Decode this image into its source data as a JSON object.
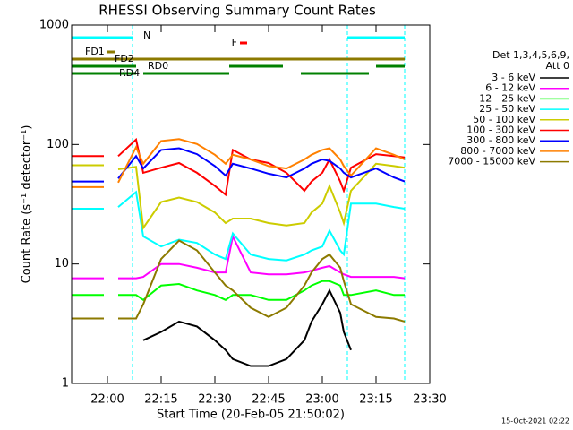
{
  "chart_data": {
    "type": "line",
    "title": "RHESSI Observing Summary Count Rates",
    "x_label": "Start Time (20-Feb-05 21:50:02)",
    "y_label": "Count Rate (s⁻¹ detector⁻¹)",
    "footer": "15-Oct-2021 02:22",
    "legend_header": [
      "Det 1,3,4,5,6,9,",
      "Att 0"
    ],
    "ylog": true,
    "xlim": [
      "21:50",
      "23:30"
    ],
    "xticks": [
      "22:00",
      "22:15",
      "22:30",
      "22:45",
      "23:00",
      "23:15",
      "23:30"
    ],
    "ylim": [
      1,
      1000
    ],
    "yticks": [
      1,
      10,
      100,
      1000
    ],
    "x": [
      "21:50",
      "21:55",
      "21:59",
      "22:00",
      "22:03",
      "22:08",
      "22:10",
      "22:15",
      "22:20",
      "22:25",
      "22:30",
      "22:33",
      "22:35",
      "22:40",
      "22:45",
      "22:50",
      "22:55",
      "22:57",
      "23:00",
      "23:02",
      "23:05",
      "23:06",
      "23:08",
      "23:15",
      "23:20",
      "23:23"
    ],
    "series": [
      {
        "name": "3 - 6 keV",
        "color": "#000000",
        "values": [
          null,
          null,
          null,
          null,
          null,
          null,
          2.3,
          2.7,
          3.3,
          3,
          2.3,
          1.9,
          1.6,
          1.4,
          1.4,
          1.6,
          2.3,
          3.3,
          4.6,
          6,
          3.9,
          2.7,
          1.9,
          null,
          null,
          null
        ]
      },
      {
        "name": "6 - 12 keV",
        "color": "#ff00ff",
        "values": [
          7.6,
          7.6,
          7.6,
          null,
          7.6,
          7.6,
          7.8,
          10,
          10,
          9.3,
          8.5,
          8.5,
          17,
          8.5,
          8.2,
          8.2,
          8.5,
          8.8,
          9.3,
          9.6,
          8.5,
          8.2,
          7.8,
          7.8,
          7.8,
          7.6
        ]
      },
      {
        "name": "12 - 25 keV",
        "color": "#00ff00",
        "values": [
          5.5,
          5.5,
          5.5,
          null,
          5.5,
          5.5,
          5,
          6.6,
          6.8,
          6,
          5.5,
          5,
          5.5,
          5.5,
          5,
          5,
          6,
          6.6,
          7.2,
          7.2,
          6.6,
          5.5,
          5.5,
          6,
          5.5,
          5.5
        ]
      },
      {
        "name": "25 - 50 keV",
        "color": "#00ffff",
        "values": [
          29,
          29,
          29,
          null,
          30,
          40,
          17,
          14,
          16,
          15,
          12,
          11,
          18,
          12,
          11,
          10.7,
          12,
          13,
          14,
          19,
          13,
          12,
          32,
          32,
          30,
          29
        ]
      },
      {
        "name": "50 - 100 keV",
        "color": "#cccc00",
        "values": [
          67,
          67,
          67,
          null,
          62,
          65,
          20,
          33,
          36,
          33,
          27,
          22,
          24,
          24,
          22,
          21,
          22,
          27,
          32,
          45,
          27,
          22,
          41,
          69,
          66,
          64
        ]
      },
      {
        "name": "100 - 300 keV",
        "color": "#ff0000",
        "values": [
          80,
          80,
          80,
          null,
          80,
          110,
          58,
          64,
          70,
          58,
          45,
          38,
          90,
          75,
          70,
          58,
          41,
          49,
          58,
          75,
          49,
          41,
          64,
          83,
          80,
          78
        ]
      },
      {
        "name": "300 - 800 keV",
        "color": "#0000ff",
        "values": [
          49,
          49,
          49,
          null,
          52,
          80,
          63,
          90,
          93,
          83,
          66,
          55,
          69,
          63,
          57,
          53,
          63,
          69,
          75,
          73,
          63,
          58,
          53,
          63,
          53,
          49
        ]
      },
      {
        "name": "800 - 7000 keV",
        "color": "#ff8000",
        "values": [
          44,
          44,
          44,
          null,
          48,
          95,
          69,
          107,
          111,
          101,
          82,
          69,
          82,
          75,
          66,
          63,
          75,
          82,
          90,
          93,
          75,
          66,
          55,
          93,
          82,
          75
        ]
      },
      {
        "name": "7000 - 15000 keV",
        "color": "#8c7a00",
        "values": [
          3.5,
          3.5,
          3.5,
          null,
          3.5,
          3.5,
          4.6,
          11,
          15.7,
          13,
          8.5,
          6.6,
          6,
          4.3,
          3.6,
          4.3,
          6.6,
          8.5,
          11,
          12,
          9.3,
          7.2,
          4.6,
          3.6,
          3.5,
          3.3
        ]
      }
    ],
    "flags": [
      {
        "label": "N",
        "color": "#00ffff",
        "segments": [
          [
            "21:50",
            "22:07"
          ],
          [
            "23:07",
            "23:23"
          ]
        ]
      },
      {
        "label": "F",
        "color": "#ff0000",
        "segments": [
          [
            "22:37",
            "22:39"
          ]
        ]
      },
      {
        "label": "FD1",
        "color": "#8c7a00",
        "segments": [
          [
            "22:00",
            "22:02"
          ]
        ]
      },
      {
        "label": "FD2",
        "color": "#8c7a00",
        "segments": [
          [
            "21:50",
            "23:23"
          ]
        ]
      },
      {
        "label": "RD0",
        "color": "#008000",
        "segments": [
          [
            "21:50",
            "22:08"
          ],
          [
            "22:34",
            "22:49"
          ],
          [
            "23:15",
            "23:23"
          ]
        ]
      },
      {
        "label": "RD4",
        "color": "#008000",
        "segments": [
          [
            "21:50",
            "22:08"
          ],
          [
            "22:10",
            "22:34"
          ],
          [
            "22:54",
            "23:13"
          ]
        ]
      }
    ]
  }
}
